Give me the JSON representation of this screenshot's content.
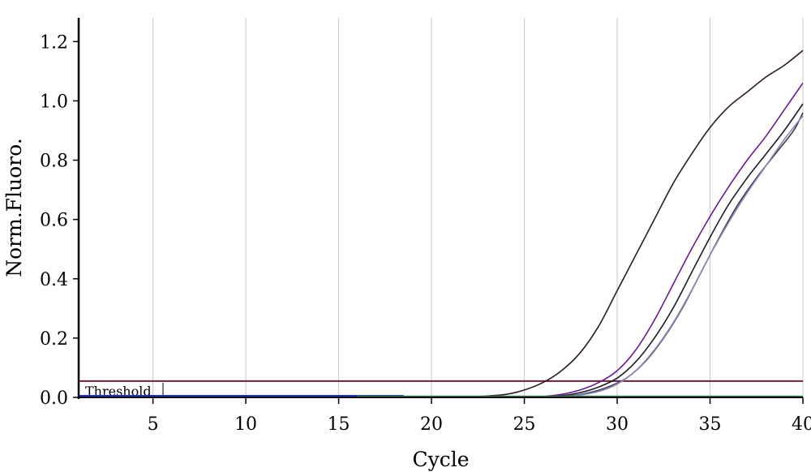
{
  "chart_data": {
    "type": "line",
    "title": "",
    "xlabel": "Cycle",
    "ylabel": "Norm.Fluoro.",
    "xlim": [
      1,
      40
    ],
    "ylim": [
      0,
      1.28
    ],
    "x_ticks": [
      5,
      10,
      15,
      20,
      25,
      30,
      35,
      40
    ],
    "x_tick_labels": [
      "5",
      "10",
      "15",
      "20",
      "25",
      "30",
      "35",
      "40"
    ],
    "y_ticks": [
      0,
      0.2,
      0.4,
      0.6,
      0.8,
      1.0,
      1.2
    ],
    "y_tick_labels": [
      "0.0",
      "0.2",
      "0.4",
      "0.6",
      "0.8",
      "1.0",
      "1.2"
    ],
    "grid": "vertical",
    "threshold": {
      "label": "Threshold",
      "value": 0.055,
      "color": "#6e1f3c"
    },
    "series": [
      {
        "color": "#2d1a25",
        "x": [
          22.5,
          24,
          25,
          26,
          27,
          28,
          29,
          30,
          31,
          32,
          33,
          34,
          35,
          36,
          37,
          38,
          39,
          40
        ],
        "y": [
          0.003,
          0.01,
          0.025,
          0.05,
          0.09,
          0.15,
          0.24,
          0.36,
          0.48,
          0.6,
          0.72,
          0.82,
          0.91,
          0.98,
          1.03,
          1.08,
          1.12,
          1.17
        ]
      },
      {
        "color": "#6a1a90",
        "x": [
          26,
          27,
          28,
          29,
          30,
          31,
          32,
          33,
          34,
          35,
          36,
          37,
          38,
          39,
          40
        ],
        "y": [
          0.003,
          0.01,
          0.025,
          0.05,
          0.09,
          0.16,
          0.26,
          0.38,
          0.5,
          0.61,
          0.71,
          0.8,
          0.88,
          0.97,
          1.06
        ]
      },
      {
        "color": "#1c1c2c",
        "x": [
          26,
          27,
          28,
          29,
          30,
          31,
          32,
          33,
          34,
          35,
          36,
          37,
          38,
          39,
          40
        ],
        "y": [
          0.002,
          0.006,
          0.016,
          0.035,
          0.065,
          0.12,
          0.2,
          0.3,
          0.42,
          0.54,
          0.65,
          0.74,
          0.82,
          0.9,
          0.99
        ]
      },
      {
        "color": "#3a3a4a",
        "x": [
          26.5,
          27.5,
          28.5,
          29.5,
          30.5,
          31.5,
          32.5,
          33.5,
          34.5,
          35.5,
          36.5,
          37.5,
          38.5,
          39.5,
          40
        ],
        "y": [
          0.002,
          0.006,
          0.016,
          0.035,
          0.065,
          0.12,
          0.2,
          0.3,
          0.42,
          0.54,
          0.65,
          0.74,
          0.82,
          0.9,
          0.96
        ]
      },
      {
        "color": "#8a86b8",
        "x": [
          27,
          28,
          29,
          30,
          31,
          32,
          33,
          34,
          35,
          36,
          37,
          38,
          39,
          40
        ],
        "y": [
          0.002,
          0.008,
          0.02,
          0.045,
          0.09,
          0.16,
          0.25,
          0.36,
          0.48,
          0.59,
          0.69,
          0.78,
          0.87,
          0.95
        ]
      },
      {
        "color": "#1a2fcf",
        "x": [
          1,
          5,
          10,
          15,
          18.5
        ],
        "y": [
          0.004,
          0.004,
          0.004,
          0.004,
          0.004
        ]
      },
      {
        "color": "#2a8a5a",
        "x": [
          16,
          20,
          25,
          30,
          35,
          40
        ],
        "y": [
          0.002,
          0.002,
          0.002,
          0.002,
          0.002,
          0.002
        ]
      }
    ]
  }
}
